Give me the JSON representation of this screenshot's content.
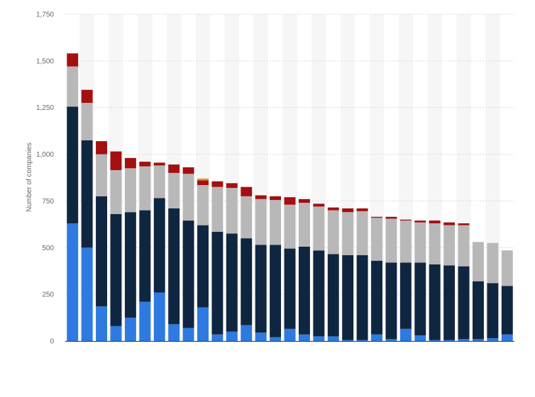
{
  "chart_data": {
    "type": "bar",
    "stacked": true,
    "title": "",
    "xlabel": "",
    "ylabel": "Number of companies",
    "ylim": [
      0,
      1750
    ],
    "yticks": [
      0,
      250,
      500,
      750,
      1000,
      1250,
      1500,
      1750
    ],
    "ytick_labels": [
      "0",
      "250",
      "500",
      "750",
      "1,000",
      "1,250",
      "1,500",
      "1,750"
    ],
    "grid": true,
    "legend": "none",
    "categories": [
      "",
      "",
      "",
      "",
      "",
      "",
      "",
      "",
      "",
      "",
      "",
      "",
      "",
      "",
      "",
      "",
      "",
      "",
      "",
      "",
      "",
      "",
      "",
      "",
      "",
      "",
      "",
      "",
      "",
      "",
      ""
    ],
    "series": [
      {
        "color": "#2e7ae0",
        "values": [
          630,
          500,
          185,
          80,
          125,
          210,
          260,
          90,
          70,
          180,
          35,
          50,
          85,
          45,
          20,
          65,
          35,
          25,
          25,
          5,
          5,
          35,
          10,
          65,
          30,
          5,
          5,
          10,
          10,
          15,
          35
        ]
      },
      {
        "color": "#0f2640",
        "values": [
          625,
          575,
          590,
          600,
          565,
          490,
          505,
          620,
          575,
          440,
          550,
          525,
          465,
          470,
          495,
          430,
          470,
          460,
          440,
          455,
          455,
          395,
          410,
          355,
          390,
          405,
          400,
          390,
          310,
          295,
          260
        ]
      },
      {
        "color": "#b8b8b8",
        "values": [
          215,
          200,
          225,
          235,
          235,
          235,
          175,
          190,
          250,
          215,
          240,
          245,
          225,
          245,
          240,
          235,
          235,
          235,
          235,
          230,
          235,
          230,
          235,
          225,
          215,
          220,
          215,
          220,
          210,
          215,
          190
        ]
      },
      {
        "color": "#a50f0f",
        "values": [
          70,
          70,
          70,
          100,
          55,
          25,
          15,
          45,
          35,
          25,
          30,
          25,
          50,
          20,
          20,
          40,
          20,
          15,
          15,
          20,
          15,
          5,
          10,
          5,
          10,
          15,
          15,
          10,
          0,
          0,
          0
        ]
      },
      {
        "color": "#d6a020",
        "values": [
          0,
          0,
          0,
          0,
          0,
          0,
          0,
          0,
          0,
          10,
          0,
          0,
          0,
          0,
          0,
          0,
          0,
          0,
          0,
          0,
          0,
          0,
          0,
          0,
          0,
          0,
          0,
          0,
          0,
          0,
          0
        ]
      }
    ]
  }
}
